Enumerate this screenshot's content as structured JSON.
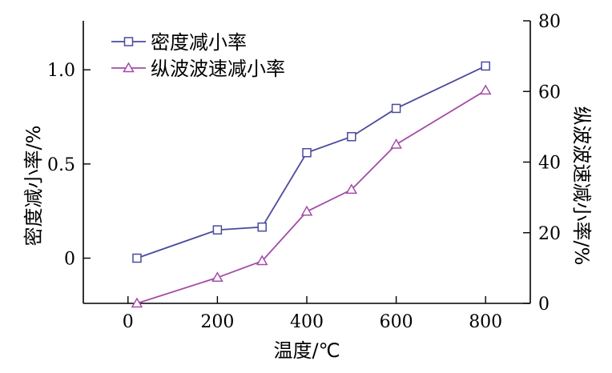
{
  "chart_data": {
    "type": "line",
    "xlabel": "温度/℃",
    "ylabel_left": "密度减小率/%",
    "ylabel_right": "纵波波速减小率/%",
    "xlim": [
      -100,
      900
    ],
    "ylim_left": [
      -0.24,
      1.26
    ],
    "ylim_right": [
      0,
      80
    ],
    "x_ticks": [
      0,
      200,
      400,
      600,
      800
    ],
    "y_left_ticks": [
      0,
      0.5,
      1.0
    ],
    "y_left_tick_labels": [
      "0",
      "0.5",
      "1.0"
    ],
    "y_right_ticks": [
      0,
      20,
      40,
      60,
      80
    ],
    "grid": false,
    "legend_position": "top-left",
    "series": [
      {
        "name": "密度减小率",
        "axis": "left",
        "marker": "square",
        "color": "#4a4a9e",
        "x": [
          20,
          200,
          300,
          400,
          500,
          600,
          800
        ],
        "y": [
          0.0,
          0.15,
          0.165,
          0.56,
          0.645,
          0.795,
          1.02
        ]
      },
      {
        "name": "纵波波速减小率",
        "axis": "right",
        "marker": "triangle",
        "color": "#a44ca8",
        "x": [
          20,
          200,
          300,
          400,
          500,
          600,
          800
        ],
        "y": [
          0.0,
          7.3,
          12.0,
          26.0,
          32.2,
          45.0,
          60.3
        ]
      }
    ]
  }
}
